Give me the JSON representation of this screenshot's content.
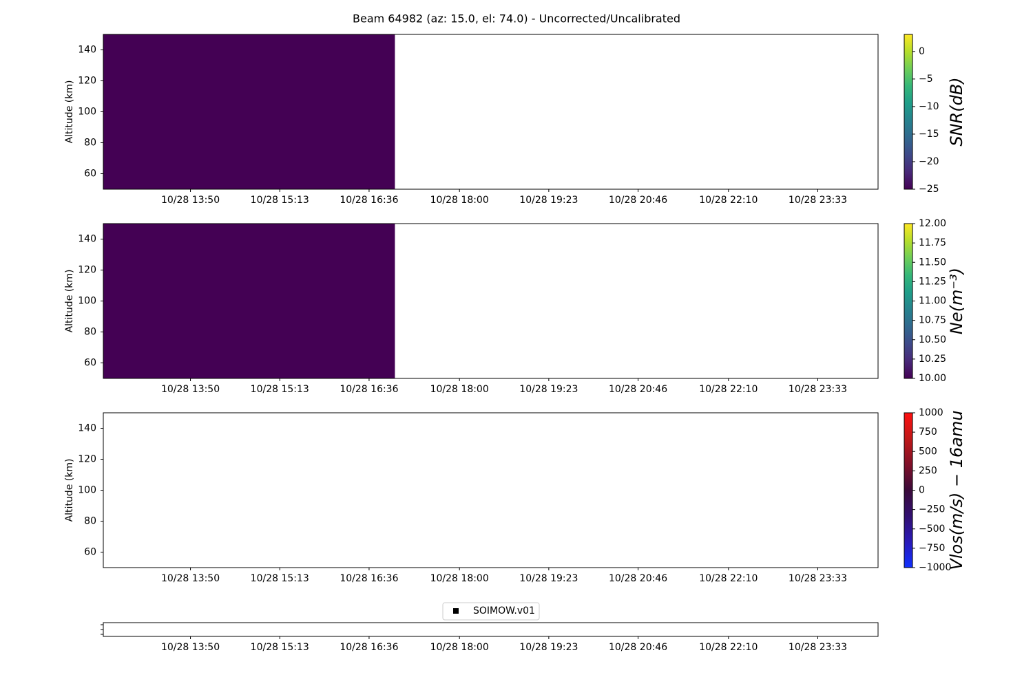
{
  "title": "Beam 64982 (az: 15.0, el: 74.0) - Uncorrected/Uncalibrated",
  "chart_data": [
    {
      "type": "heatmap",
      "ylabel": "Altitude (km)",
      "xlim": [
        "10/28 12:29",
        "10/29 00:29"
      ],
      "xticks": [
        "10/28 13:50",
        "10/28 15:13",
        "10/28 16:36",
        "10/28 18:00",
        "10/28 19:23",
        "10/28 20:46",
        "10/28 22:10",
        "10/28 23:33"
      ],
      "ylim": [
        50,
        150
      ],
      "yticks": [
        60,
        80,
        100,
        120,
        140
      ],
      "cells": [
        {
          "x0": "10/28 12:29",
          "x1": "10/28 17:00",
          "value": -25
        }
      ],
      "colorbar": {
        "label": "SNR(dB)",
        "colormap": "viridis",
        "lim": [
          -25,
          3.1
        ],
        "ticks": [
          {
            "value": -25,
            "label": "−25"
          },
          {
            "value": -20,
            "label": "−20"
          },
          {
            "value": -15,
            "label": "−15"
          },
          {
            "value": -10,
            "label": "−10"
          },
          {
            "value": -5,
            "label": "−5"
          },
          0
        ]
      }
    },
    {
      "type": "heatmap",
      "ylabel": "Altitude (km)",
      "xlim": [
        "10/28 12:29",
        "10/29 00:29"
      ],
      "xticks": [
        "10/28 13:50",
        "10/28 15:13",
        "10/28 16:36",
        "10/28 18:00",
        "10/28 19:23",
        "10/28 20:46",
        "10/28 22:10",
        "10/28 23:33"
      ],
      "ylim": [
        50,
        150
      ],
      "yticks": [
        60,
        80,
        100,
        120,
        140
      ],
      "cells": [
        {
          "x0": "10/28 12:29",
          "x1": "10/28 17:00",
          "value": 10
        }
      ],
      "colorbar": {
        "label": "Ne(m⁻³)",
        "colormap": "viridis",
        "lim": [
          10,
          12
        ],
        "ticks": [
          {
            "value": 10,
            "label": "10.00"
          },
          10.25,
          {
            "value": 10.5,
            "label": "10.50"
          },
          10.75,
          {
            "value": 11,
            "label": "11.00"
          },
          11.25,
          {
            "value": 11.5,
            "label": "11.50"
          },
          11.75,
          {
            "value": 12,
            "label": "12.00"
          }
        ]
      }
    },
    {
      "type": "heatmap",
      "ylabel": "Altitude (km)",
      "xlim": [
        "10/28 12:29",
        "10/29 00:29"
      ],
      "xticks": [
        "10/28 13:50",
        "10/28 15:13",
        "10/28 16:36",
        "10/28 18:00",
        "10/28 19:23",
        "10/28 20:46",
        "10/28 22:10",
        "10/28 23:33"
      ],
      "ylim": [
        50,
        150
      ],
      "yticks": [
        60,
        80,
        100,
        120,
        140
      ],
      "cells": [],
      "colorbar": {
        "label": "Vlos(m/s) − 16amu",
        "colormap": "bwr",
        "lim": [
          -1000,
          1000
        ],
        "ticks": [
          {
            "value": -1000,
            "label": "−1000"
          },
          {
            "value": -750,
            "label": "−750"
          },
          {
            "value": -500,
            "label": "−500"
          },
          {
            "value": -250,
            "label": "−250"
          },
          0,
          250,
          500,
          750,
          1000
        ]
      }
    },
    {
      "type": "scatter",
      "xlim": [
        "10/28 12:29",
        "10/29 00:29"
      ],
      "xticks": [
        "10/28 13:50",
        "10/28 15:13",
        "10/28 16:36",
        "10/28 18:00",
        "10/28 19:23",
        "10/28 20:46",
        "10/28 22:10",
        "10/28 23:33"
      ],
      "series": [
        {
          "name": "SOIMOW.v01",
          "color": "#000000",
          "x": [],
          "values": []
        }
      ]
    }
  ]
}
